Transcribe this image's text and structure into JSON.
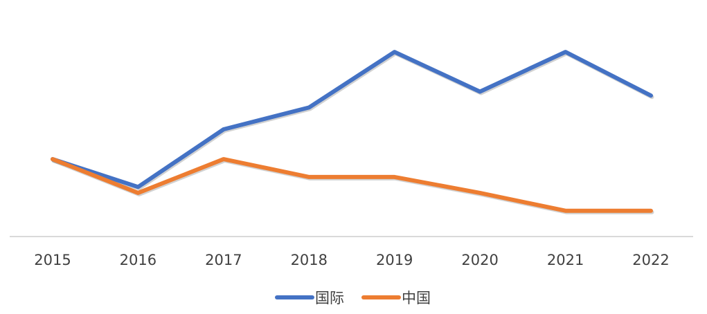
{
  "chart_data": {
    "type": "line",
    "categories": [
      "2015",
      "2016",
      "2017",
      "2018",
      "2019",
      "2020",
      "2021",
      "2022"
    ],
    "series": [
      {
        "name": "国际",
        "color": "#4472C4",
        "values": [
          39,
          25,
          54,
          65,
          93,
          73,
          93,
          71
        ]
      },
      {
        "name": "中国",
        "color": "#ED7D31",
        "values": [
          39,
          22,
          39,
          30,
          30,
          22,
          13,
          13
        ]
      }
    ],
    "ylim": [
      0,
      100
    ],
    "grid": false,
    "legend": "bottom",
    "y_axis_visible": false
  }
}
